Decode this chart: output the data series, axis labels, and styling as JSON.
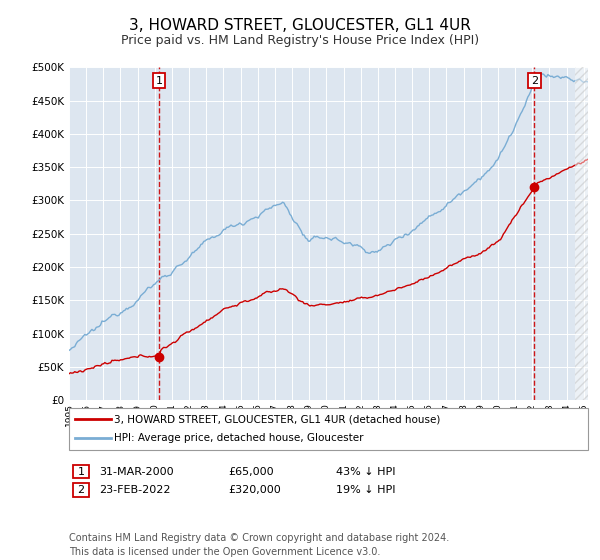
{
  "title": "3, HOWARD STREET, GLOUCESTER, GL1 4UR",
  "subtitle": "Price paid vs. HM Land Registry's House Price Index (HPI)",
  "title_fontsize": 11,
  "subtitle_fontsize": 9,
  "plot_bg_color": "#dde6f0",
  "legend_line1": "3, HOWARD STREET, GLOUCESTER, GL1 4UR (detached house)",
  "legend_line2": "HPI: Average price, detached house, Gloucester",
  "red_color": "#cc0000",
  "blue_color": "#7aadd4",
  "annotation1_date": "31-MAR-2000",
  "annotation1_price": "£65,000",
  "annotation1_hpi": "43% ↓ HPI",
  "annotation1_year": 2000.25,
  "annotation1_value": 65000,
  "annotation2_date": "23-FEB-2022",
  "annotation2_price": "£320,000",
  "annotation2_hpi": "19% ↓ HPI",
  "annotation2_year": 2022.125,
  "annotation2_value": 320000,
  "ylim": [
    0,
    500000
  ],
  "footer": "Contains HM Land Registry data © Crown copyright and database right 2024.\nThis data is licensed under the Open Government Licence v3.0.",
  "footer_fontsize": 7
}
